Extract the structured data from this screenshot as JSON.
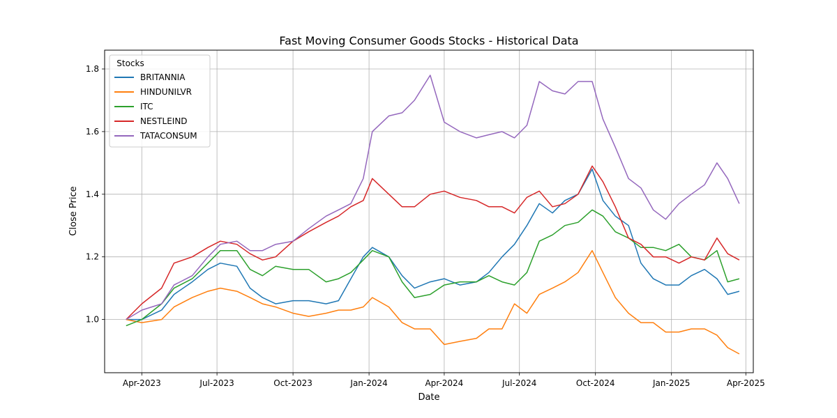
{
  "chart_data": {
    "type": "line",
    "title": "Fast Moving Consumer Goods Stocks - Historical Data",
    "xlabel": "Date",
    "ylabel": "Close Price",
    "xlim": [
      "2023-02-15",
      "2025-04-10"
    ],
    "ylim": [
      0.83,
      1.86
    ],
    "grid": true,
    "legend": {
      "title": "Stocks",
      "position": "upper-left"
    },
    "x_ticks": [
      {
        "date": "2023-04-01",
        "label": "Apr-2023"
      },
      {
        "date": "2023-07-01",
        "label": "Jul-2023"
      },
      {
        "date": "2023-10-01",
        "label": "Oct-2023"
      },
      {
        "date": "2024-01-01",
        "label": "Jan-2024"
      },
      {
        "date": "2024-04-01",
        "label": "Apr-2024"
      },
      {
        "date": "2024-07-01",
        "label": "Jul-2024"
      },
      {
        "date": "2024-10-01",
        "label": "Oct-2024"
      },
      {
        "date": "2025-01-01",
        "label": "Jan-2025"
      },
      {
        "date": "2025-04-01",
        "label": "Apr-2025"
      }
    ],
    "y_ticks": [
      1.0,
      1.2,
      1.4,
      1.6,
      1.8
    ],
    "y_tick_labels": [
      "1.0",
      "1.2",
      "1.4",
      "1.6",
      "1.8"
    ],
    "series": [
      {
        "name": "BRITANNIA",
        "color": "#1f77b4",
        "points": [
          [
            "2023-03-13",
            1.0
          ],
          [
            "2023-04-01",
            1.0
          ],
          [
            "2023-04-25",
            1.03
          ],
          [
            "2023-05-10",
            1.08
          ],
          [
            "2023-06-01",
            1.12
          ],
          [
            "2023-06-20",
            1.16
          ],
          [
            "2023-07-05",
            1.18
          ],
          [
            "2023-07-25",
            1.17
          ],
          [
            "2023-08-10",
            1.1
          ],
          [
            "2023-08-25",
            1.07
          ],
          [
            "2023-09-10",
            1.05
          ],
          [
            "2023-10-01",
            1.06
          ],
          [
            "2023-10-20",
            1.06
          ],
          [
            "2023-11-10",
            1.05
          ],
          [
            "2023-11-25",
            1.06
          ],
          [
            "2023-12-10",
            1.13
          ],
          [
            "2023-12-25",
            1.2
          ],
          [
            "2024-01-05",
            1.23
          ],
          [
            "2024-01-25",
            1.2
          ],
          [
            "2024-02-10",
            1.14
          ],
          [
            "2024-02-25",
            1.1
          ],
          [
            "2024-03-15",
            1.12
          ],
          [
            "2024-04-01",
            1.13
          ],
          [
            "2024-04-20",
            1.11
          ],
          [
            "2024-05-10",
            1.12
          ],
          [
            "2024-05-25",
            1.15
          ],
          [
            "2024-06-10",
            1.2
          ],
          [
            "2024-06-25",
            1.24
          ],
          [
            "2024-07-10",
            1.3
          ],
          [
            "2024-07-25",
            1.37
          ],
          [
            "2024-08-10",
            1.34
          ],
          [
            "2024-08-25",
            1.38
          ],
          [
            "2024-09-10",
            1.4
          ],
          [
            "2024-09-27",
            1.48
          ],
          [
            "2024-10-10",
            1.38
          ],
          [
            "2024-10-25",
            1.33
          ],
          [
            "2024-11-10",
            1.3
          ],
          [
            "2024-11-25",
            1.18
          ],
          [
            "2024-12-10",
            1.13
          ],
          [
            "2024-12-25",
            1.11
          ],
          [
            "2025-01-10",
            1.11
          ],
          [
            "2025-01-25",
            1.14
          ],
          [
            "2025-02-10",
            1.16
          ],
          [
            "2025-02-25",
            1.13
          ],
          [
            "2025-03-10",
            1.08
          ],
          [
            "2025-03-24",
            1.09
          ]
        ]
      },
      {
        "name": "HINDUNILVR",
        "color": "#ff7f0e",
        "points": [
          [
            "2023-03-13",
            1.0
          ],
          [
            "2023-04-01",
            0.99
          ],
          [
            "2023-04-25",
            1.0
          ],
          [
            "2023-05-10",
            1.04
          ],
          [
            "2023-06-01",
            1.07
          ],
          [
            "2023-06-20",
            1.09
          ],
          [
            "2023-07-05",
            1.1
          ],
          [
            "2023-07-25",
            1.09
          ],
          [
            "2023-08-10",
            1.07
          ],
          [
            "2023-08-25",
            1.05
          ],
          [
            "2023-09-10",
            1.04
          ],
          [
            "2023-10-01",
            1.02
          ],
          [
            "2023-10-20",
            1.01
          ],
          [
            "2023-11-10",
            1.02
          ],
          [
            "2023-11-25",
            1.03
          ],
          [
            "2023-12-10",
            1.03
          ],
          [
            "2023-12-25",
            1.04
          ],
          [
            "2024-01-05",
            1.07
          ],
          [
            "2024-01-25",
            1.04
          ],
          [
            "2024-02-10",
            0.99
          ],
          [
            "2024-02-25",
            0.97
          ],
          [
            "2024-03-15",
            0.97
          ],
          [
            "2024-04-01",
            0.92
          ],
          [
            "2024-04-20",
            0.93
          ],
          [
            "2024-05-10",
            0.94
          ],
          [
            "2024-05-25",
            0.97
          ],
          [
            "2024-06-10",
            0.97
          ],
          [
            "2024-06-25",
            1.05
          ],
          [
            "2024-07-10",
            1.02
          ],
          [
            "2024-07-25",
            1.08
          ],
          [
            "2024-08-10",
            1.1
          ],
          [
            "2024-08-25",
            1.12
          ],
          [
            "2024-09-10",
            1.15
          ],
          [
            "2024-09-27",
            1.22
          ],
          [
            "2024-10-10",
            1.15
          ],
          [
            "2024-10-25",
            1.07
          ],
          [
            "2024-11-10",
            1.02
          ],
          [
            "2024-11-25",
            0.99
          ],
          [
            "2024-12-10",
            0.99
          ],
          [
            "2024-12-25",
            0.96
          ],
          [
            "2025-01-10",
            0.96
          ],
          [
            "2025-01-25",
            0.97
          ],
          [
            "2025-02-10",
            0.97
          ],
          [
            "2025-02-25",
            0.95
          ],
          [
            "2025-03-10",
            0.91
          ],
          [
            "2025-03-24",
            0.89
          ]
        ]
      },
      {
        "name": "ITC",
        "color": "#2ca02c",
        "points": [
          [
            "2023-03-13",
            0.98
          ],
          [
            "2023-04-01",
            1.0
          ],
          [
            "2023-04-25",
            1.05
          ],
          [
            "2023-05-10",
            1.1
          ],
          [
            "2023-06-01",
            1.13
          ],
          [
            "2023-06-20",
            1.18
          ],
          [
            "2023-07-05",
            1.22
          ],
          [
            "2023-07-25",
            1.22
          ],
          [
            "2023-08-10",
            1.16
          ],
          [
            "2023-08-25",
            1.14
          ],
          [
            "2023-09-10",
            1.17
          ],
          [
            "2023-10-01",
            1.16
          ],
          [
            "2023-10-20",
            1.16
          ],
          [
            "2023-11-10",
            1.12
          ],
          [
            "2023-11-25",
            1.13
          ],
          [
            "2023-12-10",
            1.15
          ],
          [
            "2023-12-25",
            1.19
          ],
          [
            "2024-01-05",
            1.22
          ],
          [
            "2024-01-25",
            1.2
          ],
          [
            "2024-02-10",
            1.12
          ],
          [
            "2024-02-25",
            1.07
          ],
          [
            "2024-03-15",
            1.08
          ],
          [
            "2024-04-01",
            1.11
          ],
          [
            "2024-04-20",
            1.12
          ],
          [
            "2024-05-10",
            1.12
          ],
          [
            "2024-05-25",
            1.14
          ],
          [
            "2024-06-10",
            1.12
          ],
          [
            "2024-06-25",
            1.11
          ],
          [
            "2024-07-10",
            1.15
          ],
          [
            "2024-07-25",
            1.25
          ],
          [
            "2024-08-10",
            1.27
          ],
          [
            "2024-08-25",
            1.3
          ],
          [
            "2024-09-10",
            1.31
          ],
          [
            "2024-09-27",
            1.35
          ],
          [
            "2024-10-10",
            1.33
          ],
          [
            "2024-10-25",
            1.28
          ],
          [
            "2024-11-10",
            1.26
          ],
          [
            "2024-11-25",
            1.23
          ],
          [
            "2024-12-10",
            1.23
          ],
          [
            "2024-12-25",
            1.22
          ],
          [
            "2025-01-10",
            1.24
          ],
          [
            "2025-01-25",
            1.2
          ],
          [
            "2025-02-10",
            1.19
          ],
          [
            "2025-02-25",
            1.22
          ],
          [
            "2025-03-10",
            1.12
          ],
          [
            "2025-03-24",
            1.13
          ]
        ]
      },
      {
        "name": "NESTLEIND",
        "color": "#d62728",
        "points": [
          [
            "2023-03-13",
            1.0
          ],
          [
            "2023-04-01",
            1.05
          ],
          [
            "2023-04-25",
            1.1
          ],
          [
            "2023-05-10",
            1.18
          ],
          [
            "2023-06-01",
            1.2
          ],
          [
            "2023-06-20",
            1.23
          ],
          [
            "2023-07-05",
            1.25
          ],
          [
            "2023-07-25",
            1.24
          ],
          [
            "2023-08-10",
            1.21
          ],
          [
            "2023-08-25",
            1.19
          ],
          [
            "2023-09-10",
            1.2
          ],
          [
            "2023-10-01",
            1.25
          ],
          [
            "2023-10-20",
            1.28
          ],
          [
            "2023-11-10",
            1.31
          ],
          [
            "2023-11-25",
            1.33
          ],
          [
            "2023-12-10",
            1.36
          ],
          [
            "2023-12-25",
            1.38
          ],
          [
            "2024-01-05",
            1.45
          ],
          [
            "2024-01-25",
            1.4
          ],
          [
            "2024-02-10",
            1.36
          ],
          [
            "2024-02-25",
            1.36
          ],
          [
            "2024-03-15",
            1.4
          ],
          [
            "2024-04-01",
            1.41
          ],
          [
            "2024-04-20",
            1.39
          ],
          [
            "2024-05-10",
            1.38
          ],
          [
            "2024-05-25",
            1.36
          ],
          [
            "2024-06-10",
            1.36
          ],
          [
            "2024-06-25",
            1.34
          ],
          [
            "2024-07-10",
            1.39
          ],
          [
            "2024-07-25",
            1.41
          ],
          [
            "2024-08-10",
            1.36
          ],
          [
            "2024-08-25",
            1.37
          ],
          [
            "2024-09-10",
            1.4
          ],
          [
            "2024-09-27",
            1.49
          ],
          [
            "2024-10-10",
            1.44
          ],
          [
            "2024-10-25",
            1.36
          ],
          [
            "2024-11-10",
            1.26
          ],
          [
            "2024-11-25",
            1.24
          ],
          [
            "2024-12-10",
            1.2
          ],
          [
            "2024-12-25",
            1.2
          ],
          [
            "2025-01-10",
            1.18
          ],
          [
            "2025-01-25",
            1.2
          ],
          [
            "2025-02-10",
            1.19
          ],
          [
            "2025-02-25",
            1.26
          ],
          [
            "2025-03-10",
            1.21
          ],
          [
            "2025-03-24",
            1.19
          ]
        ]
      },
      {
        "name": "TATACONSUM",
        "color": "#9467bd",
        "points": [
          [
            "2023-03-13",
            1.0
          ],
          [
            "2023-04-01",
            1.03
          ],
          [
            "2023-04-25",
            1.05
          ],
          [
            "2023-05-10",
            1.11
          ],
          [
            "2023-06-01",
            1.14
          ],
          [
            "2023-06-20",
            1.2
          ],
          [
            "2023-07-05",
            1.24
          ],
          [
            "2023-07-25",
            1.25
          ],
          [
            "2023-08-10",
            1.22
          ],
          [
            "2023-08-25",
            1.22
          ],
          [
            "2023-09-10",
            1.24
          ],
          [
            "2023-10-01",
            1.25
          ],
          [
            "2023-10-20",
            1.29
          ],
          [
            "2023-11-10",
            1.33
          ],
          [
            "2023-11-25",
            1.35
          ],
          [
            "2023-12-10",
            1.37
          ],
          [
            "2023-12-25",
            1.45
          ],
          [
            "2024-01-05",
            1.6
          ],
          [
            "2024-01-25",
            1.65
          ],
          [
            "2024-02-10",
            1.66
          ],
          [
            "2024-02-25",
            1.7
          ],
          [
            "2024-03-15",
            1.78
          ],
          [
            "2024-04-01",
            1.63
          ],
          [
            "2024-04-20",
            1.6
          ],
          [
            "2024-05-10",
            1.58
          ],
          [
            "2024-05-25",
            1.59
          ],
          [
            "2024-06-10",
            1.6
          ],
          [
            "2024-06-25",
            1.58
          ],
          [
            "2024-07-10",
            1.62
          ],
          [
            "2024-07-25",
            1.76
          ],
          [
            "2024-08-10",
            1.73
          ],
          [
            "2024-08-25",
            1.72
          ],
          [
            "2024-09-10",
            1.76
          ],
          [
            "2024-09-27",
            1.76
          ],
          [
            "2024-10-10",
            1.64
          ],
          [
            "2024-10-25",
            1.55
          ],
          [
            "2024-11-10",
            1.45
          ],
          [
            "2024-11-25",
            1.42
          ],
          [
            "2024-12-10",
            1.35
          ],
          [
            "2024-12-25",
            1.32
          ],
          [
            "2025-01-10",
            1.37
          ],
          [
            "2025-01-25",
            1.4
          ],
          [
            "2025-02-10",
            1.43
          ],
          [
            "2025-02-25",
            1.5
          ],
          [
            "2025-03-10",
            1.45
          ],
          [
            "2025-03-24",
            1.37
          ]
        ]
      }
    ]
  }
}
